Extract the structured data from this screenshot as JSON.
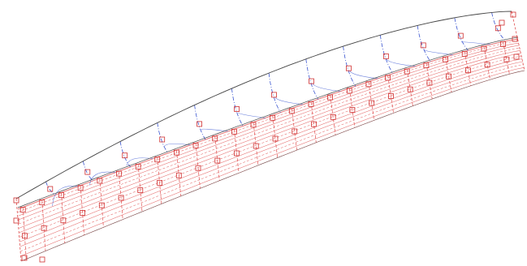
{
  "view": {
    "background": "#ffffff"
  },
  "colors": {
    "outline": "#444444",
    "waterlines": "#e05050",
    "sections": "#3a55d0",
    "control_points": "#d03030"
  },
  "hull": {
    "sheer_frames": 13,
    "lower_frames": 26,
    "waterline_count": 12,
    "control_points_per_frame": 2
  }
}
